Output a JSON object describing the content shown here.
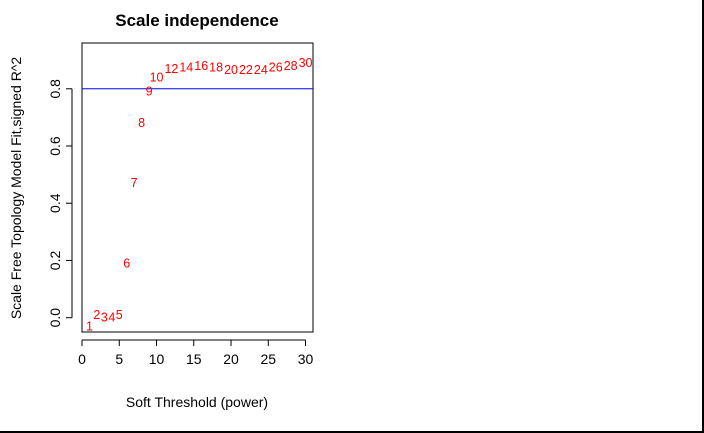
{
  "chart_data": {
    "type": "scatter",
    "title": "Scale independence",
    "xlabel": "Soft Threshold (power)",
    "ylabel": "Scale Free Topology Model Fit,signed R^2",
    "xlim": [
      0,
      31
    ],
    "ylim": [
      -0.05,
      0.96
    ],
    "x_ticks": [
      0,
      5,
      10,
      15,
      20,
      25,
      30
    ],
    "y_ticks": [
      0.0,
      0.2,
      0.4,
      0.6,
      0.8
    ],
    "y_tick_labels": [
      "0.0",
      "0.2",
      "0.4",
      "0.6",
      "0.8"
    ],
    "grid": false,
    "box": true,
    "point_label_color": "#ff0000",
    "reference_line": {
      "y": 0.8,
      "color": "#0000ff"
    },
    "points": [
      {
        "x": 1,
        "y": -0.03,
        "label": "1"
      },
      {
        "x": 2,
        "y": 0.01,
        "label": "2"
      },
      {
        "x": 3,
        "y": 0.0,
        "label": "3"
      },
      {
        "x": 4,
        "y": 0.0,
        "label": "4"
      },
      {
        "x": 5,
        "y": 0.01,
        "label": "5"
      },
      {
        "x": 6,
        "y": 0.19,
        "label": "6"
      },
      {
        "x": 7,
        "y": 0.47,
        "label": "7"
      },
      {
        "x": 8,
        "y": 0.68,
        "label": "8"
      },
      {
        "x": 9,
        "y": 0.79,
        "label": "9"
      },
      {
        "x": 10,
        "y": 0.84,
        "label": "10"
      },
      {
        "x": 12,
        "y": 0.87,
        "label": "12"
      },
      {
        "x": 14,
        "y": 0.875,
        "label": "14"
      },
      {
        "x": 16,
        "y": 0.88,
        "label": "16"
      },
      {
        "x": 18,
        "y": 0.875,
        "label": "18"
      },
      {
        "x": 20,
        "y": 0.865,
        "label": "20"
      },
      {
        "x": 22,
        "y": 0.865,
        "label": "22"
      },
      {
        "x": 24,
        "y": 0.865,
        "label": "24"
      },
      {
        "x": 26,
        "y": 0.875,
        "label": "26"
      },
      {
        "x": 28,
        "y": 0.88,
        "label": "28"
      },
      {
        "x": 30,
        "y": 0.89,
        "label": "30"
      }
    ]
  }
}
